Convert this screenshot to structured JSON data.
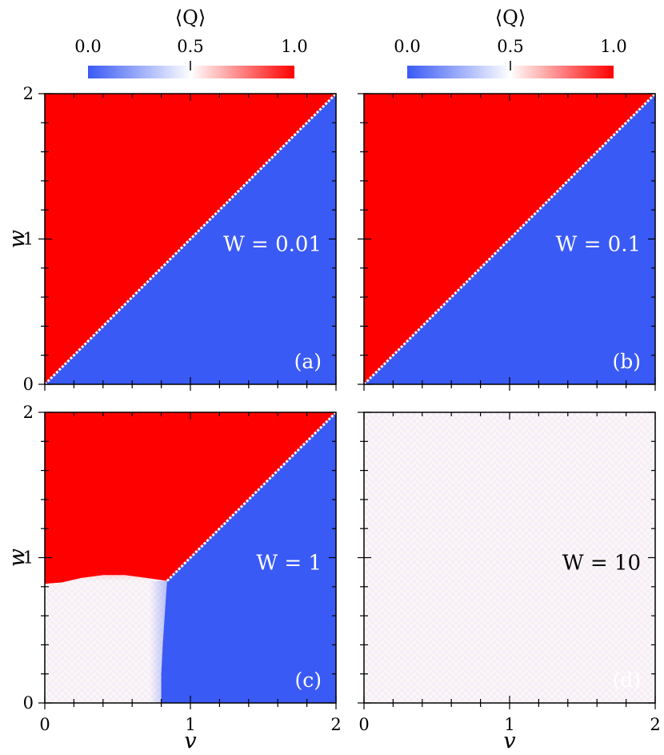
{
  "chart_data": [
    {
      "type": "heatmap",
      "panel_label": "(a)",
      "annotation": "W = 0.01",
      "W": 0.01,
      "xlabel": "",
      "ylabel": "w",
      "xlim": [
        0,
        2
      ],
      "ylim": [
        0,
        2
      ],
      "x_ticks": [
        "0",
        "1",
        "2"
      ],
      "y_ticks": [
        "0",
        "1",
        "2"
      ],
      "colorbar": {
        "title": "⟨Q⟩",
        "ticks": [
          "0.0",
          "0.5",
          "1.0"
        ],
        "range": [
          0.0,
          1.0
        ]
      },
      "description_of_field": [
        {
          "region": "w > v",
          "Q": 1.0
        },
        {
          "region": "w < v",
          "Q": 0.0
        },
        {
          "region": "w = v",
          "Q": 0.5
        }
      ]
    },
    {
      "type": "heatmap",
      "panel_label": "(b)",
      "annotation": "W = 0.1",
      "W": 0.1,
      "xlabel": "",
      "ylabel": "",
      "xlim": [
        0,
        2
      ],
      "ylim": [
        0,
        2
      ],
      "x_ticks": [
        "",
        "",
        ""
      ],
      "y_ticks": [
        "",
        "",
        ""
      ],
      "colorbar": {
        "title": "⟨Q⟩",
        "ticks": [
          "0.0",
          "0.5",
          "1.0"
        ],
        "range": [
          0.0,
          1.0
        ]
      },
      "description_of_field": [
        {
          "region": "w > v",
          "Q": 1.0
        },
        {
          "region": "w < v",
          "Q": 0.0
        },
        {
          "region": "w = v",
          "Q": 0.5
        }
      ]
    },
    {
      "type": "heatmap",
      "panel_label": "(c)",
      "annotation": "W = 1",
      "W": 1,
      "xlabel": "v",
      "ylabel": "w",
      "xlim": [
        0,
        2
      ],
      "ylim": [
        0,
        2
      ],
      "x_ticks": [
        "0",
        "1",
        "2"
      ],
      "y_ticks": [
        "0",
        "1",
        "2"
      ],
      "description_of_field": [
        {
          "region": "w > v and w above boundary from (0, 0.82) to (0.84, 0.84)",
          "Q": 1.0
        },
        {
          "region": "w < v and v right of boundary from (0.8, 0) to (0.84, 0.84)",
          "Q": 0.0
        },
        {
          "region": "remaining lower-left region",
          "Q": 0.5
        },
        {
          "region": "w = v",
          "Q": 0.5
        }
      ]
    },
    {
      "type": "heatmap",
      "panel_label": "(d)",
      "annotation": "W = 10",
      "W": 10,
      "xlabel": "v",
      "ylabel": "",
      "xlim": [
        0,
        2
      ],
      "ylim": [
        0,
        2
      ],
      "x_ticks": [
        "0",
        "1",
        "2"
      ],
      "y_ticks": [
        "",
        "",
        ""
      ],
      "description_of_field": [
        {
          "region": "entire plane",
          "Q": 0.5
        }
      ]
    }
  ],
  "colors": {
    "q0": "#3a5af5",
    "q05": "#ffffff",
    "q1": "#ff0000",
    "diagonal": "#ffffff",
    "label_light": "#ffffff",
    "label_dark": "#000000"
  }
}
